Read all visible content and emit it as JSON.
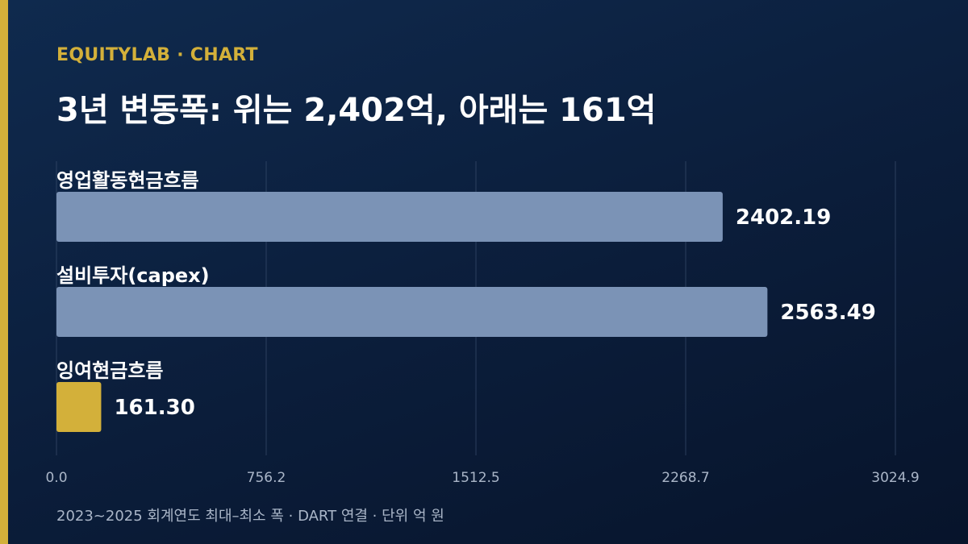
{
  "brand": {
    "label": "EQUITYLAB · CHART",
    "accent_color": "#d3b03a"
  },
  "title": "3년 변동폭: 위는 2,402억, 아래는 161억",
  "footer": "2023~2025 회계연도 최대–최소 폭 · DART 연결 · 단위 억 원",
  "chart_data": {
    "type": "bar",
    "orientation": "horizontal",
    "title": "3년 변동폭: 위는 2,402억, 아래는 161억",
    "categories": [
      "영업활동현금흐름",
      "설비투자(capex)",
      "잉여현금흐름"
    ],
    "values": [
      2402.19,
      2563.49,
      161.3
    ],
    "value_labels": [
      "2402.19",
      "2563.49",
      "161.30"
    ],
    "bar_colors": [
      "#7b93b6",
      "#7b93b6",
      "#d3b03a"
    ],
    "xlim": [
      0,
      3024.9
    ],
    "x_ticks": [
      0,
      756.2,
      1512.5,
      2268.7,
      3024.9
    ],
    "x_tick_labels": [
      "0.0",
      "756.2",
      "1512.5",
      "2268.7",
      "3024.9"
    ],
    "grid": true,
    "xlabel": "",
    "ylabel": ""
  }
}
